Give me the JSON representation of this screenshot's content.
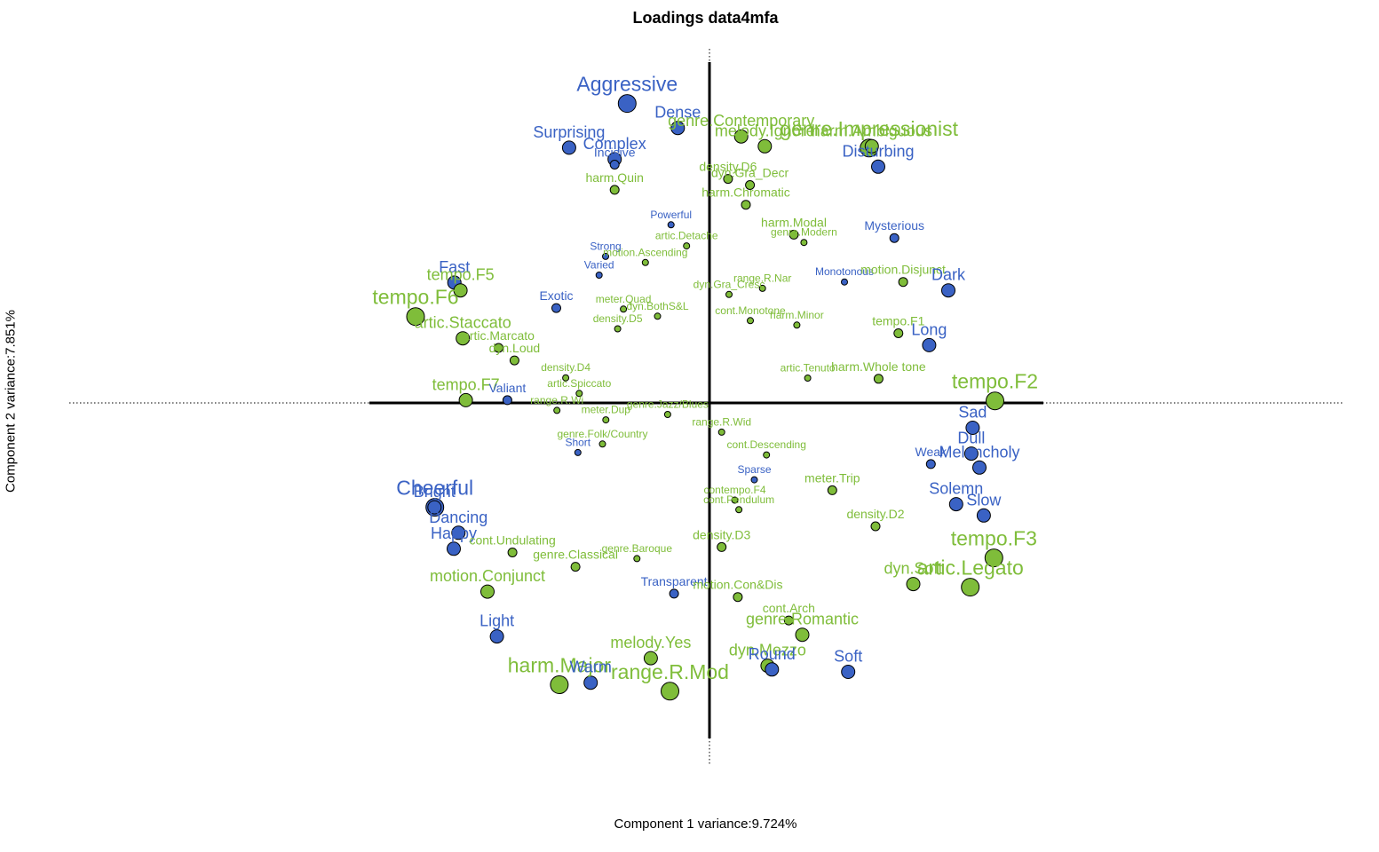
{
  "chart_data": {
    "type": "scatter",
    "title": "Loadings data4mfa",
    "xlabel": "Component 1 variance:9.724%",
    "ylabel": "Component 2 variance:7.851%",
    "xlim": [
      -1,
      1
    ],
    "ylim": [
      -1,
      1
    ],
    "colors": {
      "group1": "#3a62c4",
      "group2": "#7fbd3a"
    },
    "points": [
      {
        "label": "Aggressive",
        "x": -0.244,
        "y": 0.881,
        "size": 3,
        "group": 1
      },
      {
        "label": "Dense",
        "x": -0.094,
        "y": 0.809,
        "size": 2,
        "group": 1
      },
      {
        "label": "genre.Contemporary",
        "x": 0.094,
        "y": 0.784,
        "size": 2,
        "group": 2
      },
      {
        "label": "melody.Ignore",
        "x": 0.164,
        "y": 0.755,
        "size": 2,
        "group": 2
      },
      {
        "label": "genre.Impressionist",
        "x": 0.473,
        "y": 0.75,
        "size": 3,
        "group": 2
      },
      {
        "label": "harm.Ambiguous",
        "x": 0.481,
        "y": 0.755,
        "size": 2,
        "group": 2
      },
      {
        "label": "Surprising",
        "x": -0.416,
        "y": 0.751,
        "size": 2,
        "group": 1
      },
      {
        "label": "Complex",
        "x": -0.281,
        "y": 0.717,
        "size": 2,
        "group": 1
      },
      {
        "label": "Incisive",
        "x": -0.281,
        "y": 0.701,
        "size": 1,
        "group": 1
      },
      {
        "label": "Disturbing",
        "x": 0.5,
        "y": 0.695,
        "size": 2,
        "group": 1
      },
      {
        "label": "density.D6",
        "x": 0.055,
        "y": 0.659,
        "size": 1,
        "group": 2
      },
      {
        "label": "dyn.Gra_Decr",
        "x": 0.12,
        "y": 0.641,
        "size": 1,
        "group": 2
      },
      {
        "label": "harm.Quin",
        "x": -0.281,
        "y": 0.627,
        "size": 1,
        "group": 2
      },
      {
        "label": "harm.Chromatic",
        "x": 0.108,
        "y": 0.583,
        "size": 1,
        "group": 2
      },
      {
        "label": "Powerful",
        "x": -0.114,
        "y": 0.524,
        "size": 0,
        "group": 1
      },
      {
        "label": "harm.Modal",
        "x": 0.25,
        "y": 0.495,
        "size": 1,
        "group": 2
      },
      {
        "label": "Mysterious",
        "x": 0.548,
        "y": 0.485,
        "size": 1,
        "group": 1
      },
      {
        "label": "genre.Modern",
        "x": 0.28,
        "y": 0.472,
        "size": 0,
        "group": 2
      },
      {
        "label": "artic.Detache",
        "x": -0.068,
        "y": 0.462,
        "size": 0,
        "group": 2
      },
      {
        "label": "Strong",
        "x": -0.308,
        "y": 0.431,
        "size": 0,
        "group": 1
      },
      {
        "label": "motion.Ascending",
        "x": -0.19,
        "y": 0.413,
        "size": 0,
        "group": 2
      },
      {
        "label": "Varied",
        "x": -0.327,
        "y": 0.376,
        "size": 0,
        "group": 1
      },
      {
        "label": "Monotonous",
        "x": 0.4,
        "y": 0.356,
        "size": 0,
        "group": 1
      },
      {
        "label": "motion.Disjunct",
        "x": 0.574,
        "y": 0.356,
        "size": 1,
        "group": 2
      },
      {
        "label": "Dark",
        "x": 0.708,
        "y": 0.331,
        "size": 2,
        "group": 1
      },
      {
        "label": "Fast",
        "x": -0.756,
        "y": 0.354,
        "size": 2,
        "group": 1
      },
      {
        "label": "tempo.F5",
        "x": -0.738,
        "y": 0.331,
        "size": 2,
        "group": 2
      },
      {
        "label": "range.R.Nar",
        "x": 0.157,
        "y": 0.337,
        "size": 0,
        "group": 2
      },
      {
        "label": "dyn.Gra_Cresc",
        "x": 0.058,
        "y": 0.319,
        "size": 0,
        "group": 2
      },
      {
        "label": "meter.Quad",
        "x": -0.255,
        "y": 0.276,
        "size": 0,
        "group": 2
      },
      {
        "label": "dyn.BothS&L",
        "x": -0.154,
        "y": 0.255,
        "size": 0,
        "group": 2
      },
      {
        "label": "Exotic",
        "x": -0.454,
        "y": 0.279,
        "size": 1,
        "group": 1
      },
      {
        "label": "tempo.F6",
        "x": -0.871,
        "y": 0.254,
        "size": 3,
        "group": 2
      },
      {
        "label": "cont.Monotone",
        "x": 0.121,
        "y": 0.242,
        "size": 0,
        "group": 2
      },
      {
        "label": "harm.Minor",
        "x": 0.259,
        "y": 0.229,
        "size": 0,
        "group": 2
      },
      {
        "label": "density.D5",
        "x": -0.272,
        "y": 0.218,
        "size": 0,
        "group": 2
      },
      {
        "label": "artic.Staccato",
        "x": -0.731,
        "y": 0.19,
        "size": 2,
        "group": 2
      },
      {
        "label": "tempo.F1",
        "x": 0.56,
        "y": 0.205,
        "size": 1,
        "group": 2
      },
      {
        "label": "Long",
        "x": 0.651,
        "y": 0.17,
        "size": 2,
        "group": 1
      },
      {
        "label": "artic.Marcato",
        "x": -0.625,
        "y": 0.162,
        "size": 1,
        "group": 2
      },
      {
        "label": "dyn.Loud",
        "x": -0.578,
        "y": 0.125,
        "size": 1,
        "group": 2
      },
      {
        "label": "density.D4",
        "x": -0.426,
        "y": 0.074,
        "size": 0,
        "group": 2
      },
      {
        "label": "artic.Tenuto",
        "x": 0.291,
        "y": 0.073,
        "size": 0,
        "group": 2
      },
      {
        "label": "harm.Whole tone",
        "x": 0.501,
        "y": 0.071,
        "size": 1,
        "group": 2
      },
      {
        "label": "artic.Spiccato",
        "x": -0.386,
        "y": 0.028,
        "size": 0,
        "group": 2
      },
      {
        "label": "tempo.F7",
        "x": -0.722,
        "y": 0.008,
        "size": 2,
        "group": 2
      },
      {
        "label": "Valiant",
        "x": -0.599,
        "y": 0.008,
        "size": 1,
        "group": 1
      },
      {
        "label": "range.R.Wi",
        "x": -0.452,
        "y": -0.022,
        "size": 0,
        "group": 2
      },
      {
        "label": "genre.Jazz/Blues",
        "x": -0.124,
        "y": -0.034,
        "size": 0,
        "group": 2
      },
      {
        "label": "meter.Dup",
        "x": -0.307,
        "y": -0.05,
        "size": 0,
        "group": 2
      },
      {
        "label": "range.R.Wid",
        "x": 0.036,
        "y": -0.086,
        "size": 0,
        "group": 2
      },
      {
        "label": "genre.Folk/Country",
        "x": -0.317,
        "y": -0.121,
        "size": 0,
        "group": 2
      },
      {
        "label": "Short",
        "x": -0.39,
        "y": -0.146,
        "size": 0,
        "group": 1
      },
      {
        "label": "cont.Descending",
        "x": 0.169,
        "y": -0.153,
        "size": 0,
        "group": 2
      },
      {
        "label": "tempo.F2",
        "x": 0.846,
        "y": 0.006,
        "size": 3,
        "group": 2
      },
      {
        "label": "Sad",
        "x": 0.78,
        "y": -0.073,
        "size": 2,
        "group": 1
      },
      {
        "label": "Dull",
        "x": 0.776,
        "y": -0.149,
        "size": 2,
        "group": 1
      },
      {
        "label": "Melancholy",
        "x": 0.8,
        "y": -0.19,
        "size": 2,
        "group": 1
      },
      {
        "label": "Weak",
        "x": 0.656,
        "y": -0.18,
        "size": 1,
        "group": 1
      },
      {
        "label": "Sparse",
        "x": 0.133,
        "y": -0.226,
        "size": 0,
        "group": 1
      },
      {
        "label": "meter.Trip",
        "x": 0.364,
        "y": -0.257,
        "size": 1,
        "group": 2
      },
      {
        "label": "Solemn",
        "x": 0.731,
        "y": -0.298,
        "size": 2,
        "group": 1
      },
      {
        "label": "Slow",
        "x": 0.813,
        "y": -0.331,
        "size": 2,
        "group": 1
      },
      {
        "label": "contempo.F4",
        "x": 0.075,
        "y": -0.286,
        "size": 0,
        "group": 2
      },
      {
        "label": "cont.Pendulum",
        "x": 0.087,
        "y": -0.314,
        "size": 0,
        "group": 2
      },
      {
        "label": "density.D2",
        "x": 0.492,
        "y": -0.363,
        "size": 1,
        "group": 2
      },
      {
        "label": "density.D3",
        "x": 0.036,
        "y": -0.424,
        "size": 1,
        "group": 2
      },
      {
        "label": "tempo.F3",
        "x": 0.843,
        "y": -0.456,
        "size": 3,
        "group": 2
      },
      {
        "label": "dyn.Soft",
        "x": 0.604,
        "y": -0.533,
        "size": 2,
        "group": 2
      },
      {
        "label": "artic.Legato",
        "x": 0.773,
        "y": -0.542,
        "size": 3,
        "group": 2
      },
      {
        "label": "Cheerful",
        "x": -0.814,
        "y": -0.307,
        "size": 3,
        "group": 1
      },
      {
        "label": "Bright",
        "x": -0.815,
        "y": -0.307,
        "size": 2,
        "group": 1
      },
      {
        "label": "Dancing",
        "x": -0.744,
        "y": -0.382,
        "size": 2,
        "group": 1
      },
      {
        "label": "Happy",
        "x": -0.758,
        "y": -0.429,
        "size": 2,
        "group": 1
      },
      {
        "label": "cont.Undulating",
        "x": -0.584,
        "y": -0.44,
        "size": 1,
        "group": 2
      },
      {
        "label": "genre.Baroque",
        "x": -0.215,
        "y": -0.458,
        "size": 0,
        "group": 2
      },
      {
        "label": "genre.Classical",
        "x": -0.397,
        "y": -0.482,
        "size": 1,
        "group": 2
      },
      {
        "label": "motion.Conjunct",
        "x": -0.658,
        "y": -0.555,
        "size": 2,
        "group": 2
      },
      {
        "label": "Transparent",
        "x": -0.105,
        "y": -0.561,
        "size": 1,
        "group": 1
      },
      {
        "label": "motion.Con&Dis",
        "x": 0.084,
        "y": -0.571,
        "size": 1,
        "group": 2
      },
      {
        "label": "cont.Arch",
        "x": 0.235,
        "y": -0.64,
        "size": 1,
        "group": 2
      },
      {
        "label": "genre.Romantic",
        "x": 0.275,
        "y": -0.682,
        "size": 2,
        "group": 2
      },
      {
        "label": "Light",
        "x": -0.63,
        "y": -0.687,
        "size": 2,
        "group": 1
      },
      {
        "label": "melody.Yes",
        "x": -0.174,
        "y": -0.751,
        "size": 2,
        "group": 2
      },
      {
        "label": "dyn.Mezzo",
        "x": 0.172,
        "y": -0.773,
        "size": 2,
        "group": 2
      },
      {
        "label": "Round",
        "x": 0.185,
        "y": -0.784,
        "size": 2,
        "group": 1
      },
      {
        "label": "Soft",
        "x": 0.411,
        "y": -0.791,
        "size": 2,
        "group": 1
      },
      {
        "label": "harm.Major",
        "x": -0.445,
        "y": -0.829,
        "size": 3,
        "group": 2
      },
      {
        "label": "Warm",
        "x": -0.352,
        "y": -0.823,
        "size": 2,
        "group": 1
      },
      {
        "label": "range.R.Mod",
        "x": -0.117,
        "y": -0.848,
        "size": 3,
        "group": 2
      }
    ]
  }
}
